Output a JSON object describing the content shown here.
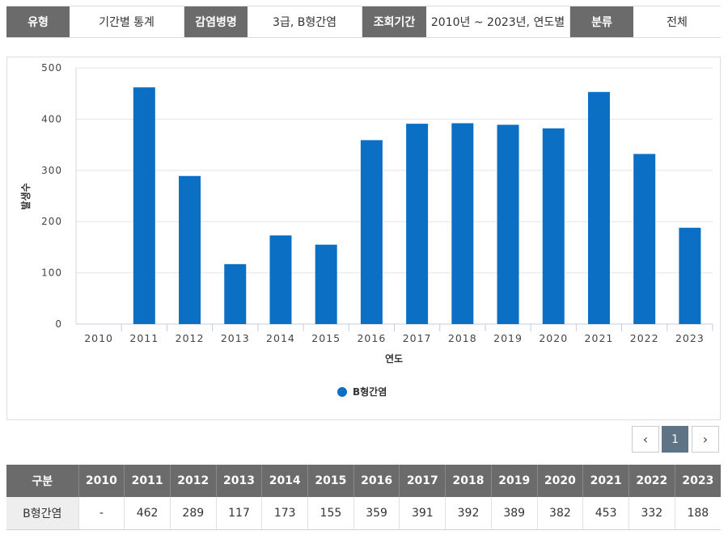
{
  "filter": {
    "type_label": "유형",
    "type_value": "기간별 통계",
    "disease_label": "감염병명",
    "disease_value": "3급, B형간염",
    "period_label": "조회기간",
    "period_value": "2010년 ~ 2023년, 연도별",
    "class_label": "분류",
    "class_value": "전체"
  },
  "chart_data": {
    "type": "bar",
    "categories": [
      "2010",
      "2011",
      "2012",
      "2013",
      "2014",
      "2015",
      "2016",
      "2017",
      "2018",
      "2019",
      "2020",
      "2021",
      "2022",
      "2023"
    ],
    "series": [
      {
        "name": "B형간염",
        "values": [
          0,
          462,
          289,
          117,
          173,
          155,
          359,
          391,
          392,
          389,
          382,
          453,
          332,
          188
        ],
        "color": "#0b6fc4"
      }
    ],
    "xlabel": "연도",
    "ylabel": "발생수",
    "ylim": [
      0,
      500
    ],
    "yticks": [
      0,
      100,
      200,
      300,
      400,
      500
    ],
    "grid": true,
    "legend": "bottom-center"
  },
  "pagination": {
    "prev_icon": "‹",
    "current": "1",
    "next_icon": "›"
  },
  "table": {
    "header_first": "구분",
    "years": [
      "2010",
      "2011",
      "2012",
      "2013",
      "2014",
      "2015",
      "2016",
      "2017",
      "2018",
      "2019",
      "2020",
      "2021",
      "2022",
      "2023"
    ],
    "row_label": "B형간염",
    "values": [
      "-",
      "462",
      "289",
      "117",
      "173",
      "155",
      "359",
      "391",
      "392",
      "389",
      "382",
      "453",
      "332",
      "188"
    ]
  }
}
